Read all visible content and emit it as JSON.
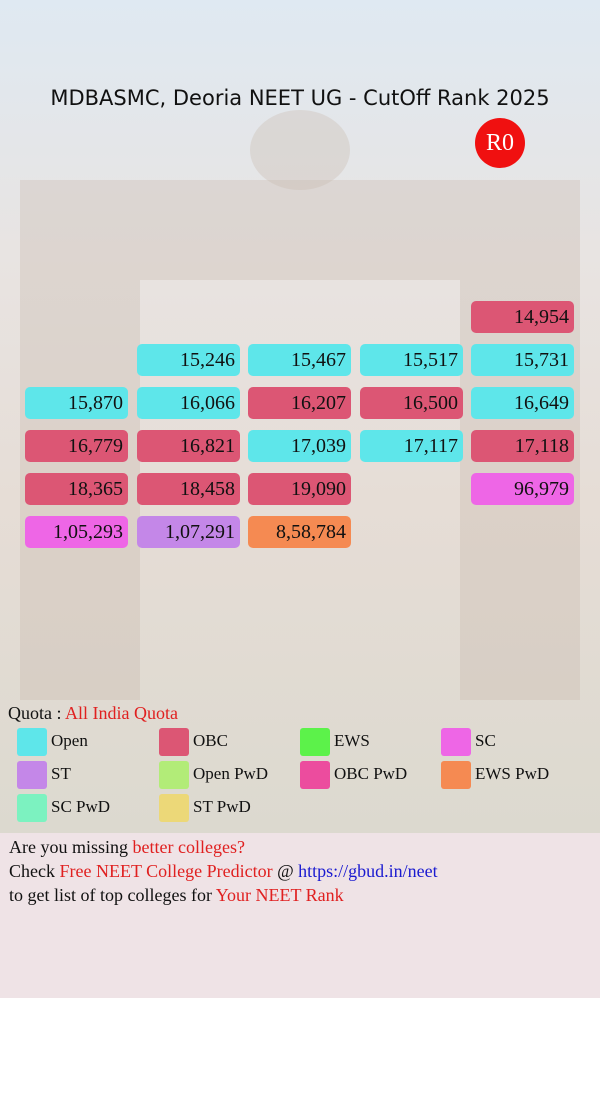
{
  "header": {
    "title": "MDBASMC, Deoria NEET UG - CutOff Rank 2025",
    "round": "R0"
  },
  "grid": {
    "rows": [
      [
        null,
        null,
        null,
        null,
        {
          "rank": "14,954",
          "quota": "OBC"
        }
      ],
      [
        null,
        {
          "rank": "15,246",
          "quota": "Open"
        },
        {
          "rank": "15,467",
          "quota": "Open"
        },
        {
          "rank": "15,517",
          "quota": "Open"
        },
        {
          "rank": "15,731",
          "quota": "Open"
        }
      ],
      [
        {
          "rank": "15,870",
          "quota": "Open"
        },
        {
          "rank": "16,066",
          "quota": "Open"
        },
        {
          "rank": "16,207",
          "quota": "OBC"
        },
        {
          "rank": "16,500",
          "quota": "OBC"
        },
        {
          "rank": "16,649",
          "quota": "Open"
        }
      ],
      [
        {
          "rank": "16,779",
          "quota": "OBC"
        },
        {
          "rank": "16,821",
          "quota": "OBC"
        },
        {
          "rank": "17,039",
          "quota": "Open"
        },
        {
          "rank": "17,117",
          "quota": "Open"
        },
        {
          "rank": "17,118",
          "quota": "OBC"
        }
      ],
      [
        {
          "rank": "18,365",
          "quota": "OBC"
        },
        {
          "rank": "18,458",
          "quota": "OBC"
        },
        {
          "rank": "19,090",
          "quota": "OBC"
        },
        null,
        {
          "rank": "96,979",
          "quota": "SC"
        }
      ],
      [
        {
          "rank": "1,05,293",
          "quota": "SC"
        },
        {
          "rank": "1,07,291",
          "quota": "ST"
        },
        {
          "rank": "8,58,784",
          "quota": "EWS PwD"
        },
        null,
        null
      ]
    ]
  },
  "quota": {
    "label": "Quota : ",
    "value": "All India Quota"
  },
  "legend": [
    {
      "name": "Open",
      "color": "#5ee6ea"
    },
    {
      "name": "OBC",
      "color": "#dc5674"
    },
    {
      "name": "EWS",
      "color": "#5cf24a"
    },
    {
      "name": "SC",
      "color": "#ee66e6"
    },
    {
      "name": "ST",
      "color": "#c487e8"
    },
    {
      "name": "Open PwD",
      "color": "#b2ec78"
    },
    {
      "name": "OBC PwD",
      "color": "#ec4c9e"
    },
    {
      "name": "EWS PwD",
      "color": "#f58a52"
    },
    {
      "name": "SC PwD",
      "color": "#7cf2c0"
    },
    {
      "name": "ST PwD",
      "color": "#ecd878"
    }
  ],
  "footer": {
    "lines": [
      [
        {
          "text": "Are you missing ",
          "color": "#111111"
        },
        {
          "text": "better colleges?",
          "color": "#e02020"
        }
      ],
      [
        {
          "text": "Check ",
          "color": "#111111"
        },
        {
          "text": "Free NEET College Predictor",
          "color": "#e02020"
        },
        {
          "text": " @ ",
          "color": "#111111"
        },
        {
          "text": "https://gbud.in/neet",
          "color": "#1a1ad0"
        }
      ],
      [
        {
          "text": "to get list of top colleges for ",
          "color": "#111111"
        },
        {
          "text": "Your NEET Rank",
          "color": "#e02020"
        }
      ]
    ]
  }
}
